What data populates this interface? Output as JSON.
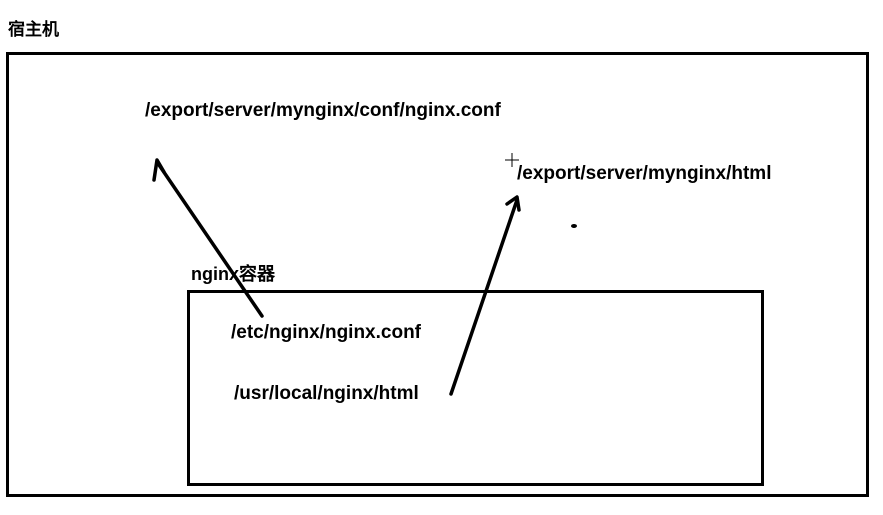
{
  "host": {
    "title": "宿主机",
    "conf_path": "/export/server/mynginx/conf/nginx.conf",
    "html_path": "/export/server/mynginx/html"
  },
  "container": {
    "title": "nginx容器",
    "conf_path": "/etc/nginx/nginx.conf",
    "html_path": "/usr/local/nginx/html"
  },
  "mappings": [
    {
      "from": "container.conf_path",
      "to": "host.conf_path"
    },
    {
      "from": "container.html_path",
      "to": "host.html_path"
    }
  ]
}
